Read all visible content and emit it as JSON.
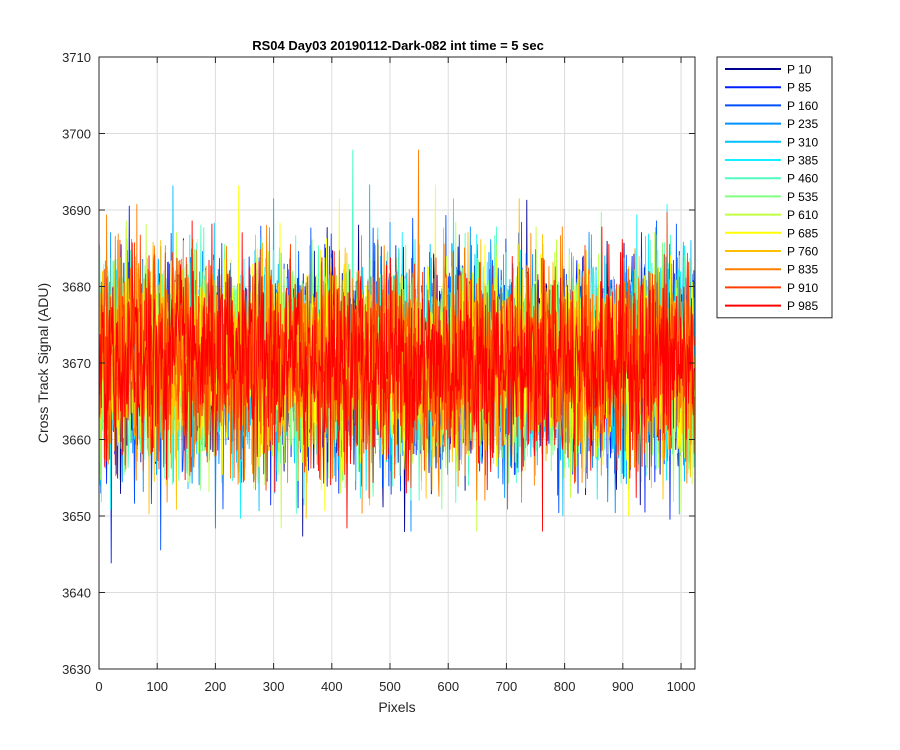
{
  "chart_data": {
    "type": "line",
    "title": "RS04 Day03 20190112-Dark-082 int time = 5 sec",
    "xlabel": "Pixels",
    "ylabel": "Cross Track Signal (ADU)",
    "xlim": [
      0,
      1024
    ],
    "ylim": [
      3630,
      3710
    ],
    "xticks": [
      0,
      100,
      200,
      300,
      400,
      500,
      600,
      700,
      800,
      900,
      1000
    ],
    "yticks": [
      3630,
      3640,
      3650,
      3660,
      3670,
      3680,
      3690,
      3700,
      3710
    ],
    "grid": true,
    "legend_position": "outside-top-right",
    "x_count": 1024,
    "mean": 3670,
    "series": [
      {
        "name": "P 10",
        "color": "#00008f"
      },
      {
        "name": "P 85",
        "color": "#0020ff"
      },
      {
        "name": "P 160",
        "color": "#0050ff"
      },
      {
        "name": "P 235",
        "color": "#0090ff"
      },
      {
        "name": "P 310",
        "color": "#00c0ff"
      },
      {
        "name": "P 385",
        "color": "#10f0ff"
      },
      {
        "name": "P 460",
        "color": "#50ffc0"
      },
      {
        "name": "P 535",
        "color": "#80ff80"
      },
      {
        "name": "P 610",
        "color": "#c0ff40"
      },
      {
        "name": "P 685",
        "color": "#ffff00"
      },
      {
        "name": "P 760",
        "color": "#ffc000"
      },
      {
        "name": "P 835",
        "color": "#ff8000"
      },
      {
        "name": "P 910",
        "color": "#ff4000"
      },
      {
        "name": "P 985",
        "color": "#ff0000"
      }
    ]
  }
}
